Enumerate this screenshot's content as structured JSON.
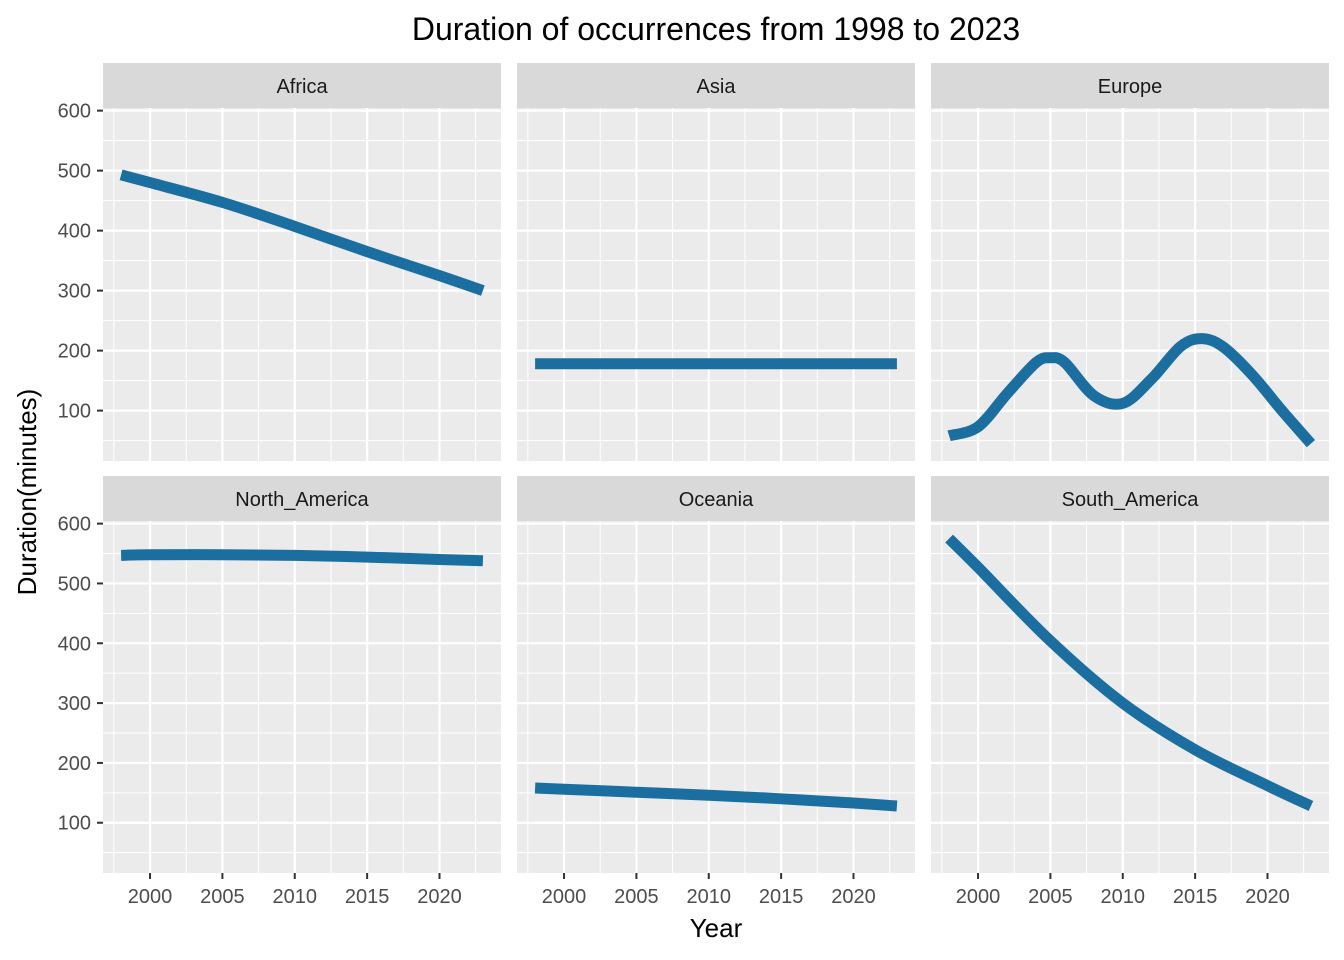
{
  "chart_data": {
    "type": "line",
    "title": "Duration of occurrences from 1998 to 2023",
    "xlabel": "Year",
    "ylabel": "Duration(minutes)",
    "xlim": [
      1996.75,
      2024.25
    ],
    "ylim": [
      16,
      600
    ],
    "x_ticks": [
      2000,
      2005,
      2010,
      2015,
      2020
    ],
    "y_ticks": [
      100,
      200,
      300,
      400,
      500,
      600
    ],
    "grid": true,
    "line_color": "#1B6FA0",
    "panel_background": "#EBEBEB",
    "strip_background": "#D9D9D9",
    "facets": [
      {
        "name": "Africa",
        "x": [
          1998,
          2000,
          2005,
          2010,
          2015,
          2020,
          2023
        ],
        "y": [
          493,
          480,
          447,
          407,
          365,
          325,
          300
        ]
      },
      {
        "name": "Asia",
        "x": [
          1998,
          2000,
          2005,
          2010,
          2015,
          2020,
          2023
        ],
        "y": [
          178,
          178,
          178,
          178,
          178,
          178,
          178
        ]
      },
      {
        "name": "Europe",
        "x": [
          1998,
          2000,
          2002,
          2004,
          2005,
          2006,
          2008,
          2010,
          2012,
          2014,
          2015.5,
          2017,
          2019,
          2021,
          2023
        ],
        "y": [
          58,
          73,
          128,
          180,
          188,
          180,
          125,
          112,
          153,
          207,
          220,
          205,
          158,
          100,
          45
        ]
      },
      {
        "name": "North_America",
        "x": [
          1998,
          2000,
          2005,
          2010,
          2015,
          2020,
          2023
        ],
        "y": [
          547,
          548,
          548,
          547,
          544,
          540,
          538
        ]
      },
      {
        "name": "Oceania",
        "x": [
          1998,
          2000,
          2005,
          2010,
          2015,
          2020,
          2023
        ],
        "y": [
          158,
          156,
          151,
          146,
          140,
          133,
          128
        ]
      },
      {
        "name": "South_America",
        "x": [
          1998,
          2000,
          2005,
          2010,
          2015,
          2020,
          2023
        ],
        "y": [
          575,
          527,
          404,
          300,
          222,
          162,
          128
        ]
      }
    ]
  }
}
